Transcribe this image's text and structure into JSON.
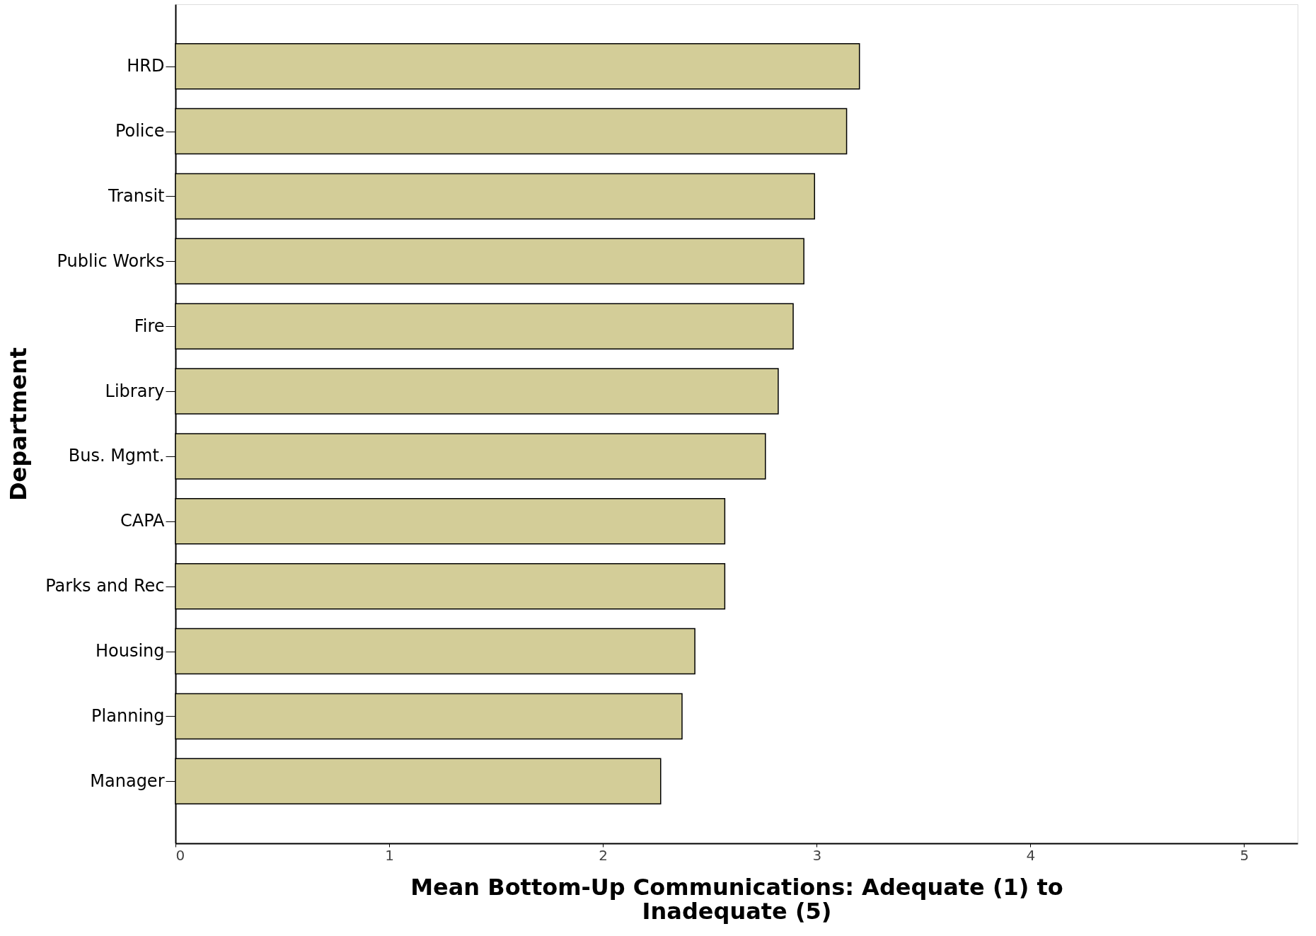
{
  "chart_data": {
    "type": "bar",
    "orientation": "horizontal",
    "categories": [
      "HRD",
      "Police",
      "Transit",
      "Public Works",
      "Fire",
      "Library",
      "Bus. Mgmt.",
      "CAPA",
      "Parks and Rec",
      "Housing",
      "Planning",
      "Manager"
    ],
    "values": [
      3.2,
      3.14,
      2.99,
      2.94,
      2.89,
      2.82,
      2.76,
      2.57,
      2.57,
      2.43,
      2.37,
      2.27
    ],
    "color": "#d3cd98",
    "xlabel": "Mean Bottom-Up Communications: Adequate (1) to Inadequate (5)",
    "ylabel": "Department",
    "xlim": [
      0,
      5.25
    ],
    "xticks": [
      0,
      1,
      2,
      3,
      4,
      5
    ],
    "grid": false,
    "legend": false
  }
}
